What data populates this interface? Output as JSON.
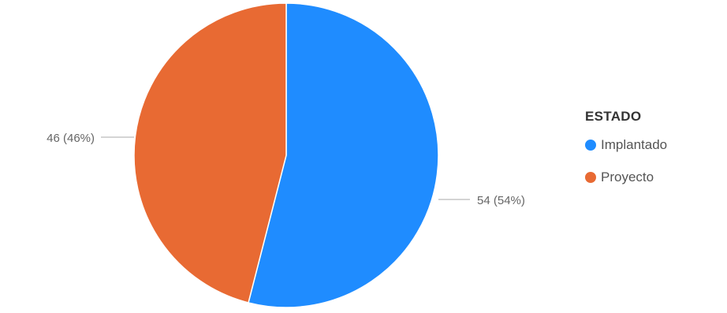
{
  "chart_data": {
    "type": "pie",
    "categories": [
      "Implantado",
      "Proyecto"
    ],
    "values": [
      54,
      46
    ],
    "labels": [
      "54 (54%)",
      "46 (46%)"
    ],
    "colors": [
      "#1f8cff",
      "#e86a33"
    ],
    "legend": {
      "title": "ESTADO",
      "position": "right"
    }
  }
}
